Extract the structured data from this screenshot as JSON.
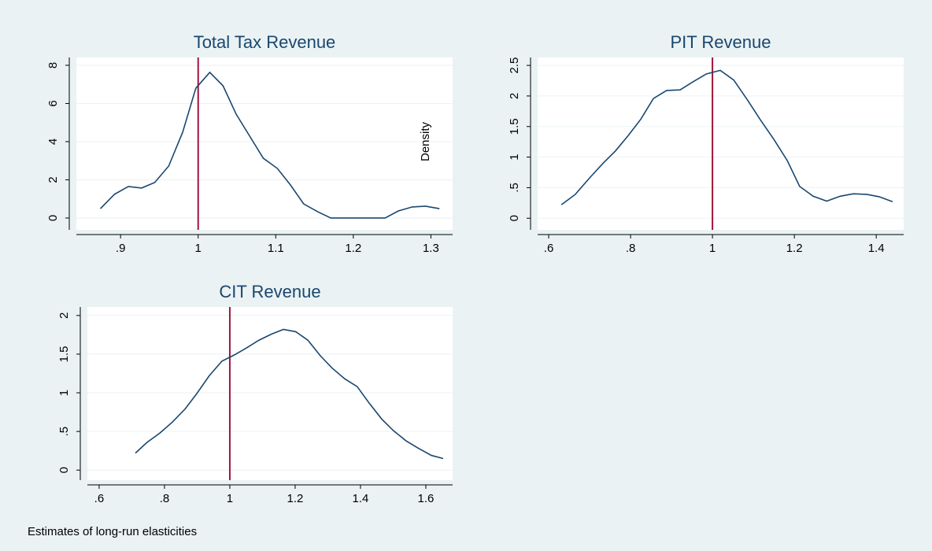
{
  "note": "Estimates of long-run elasticities",
  "chart_data": [
    {
      "type": "line",
      "title": "Total Tax Revenue",
      "ylabel": "Density",
      "x": [
        0.874,
        0.892,
        0.91,
        0.927,
        0.944,
        0.962,
        0.98,
        0.997,
        1.015,
        1.032,
        1.049,
        1.067,
        1.084,
        1.102,
        1.119,
        1.136,
        1.154,
        1.171,
        1.188,
        1.206,
        1.223,
        1.241,
        1.258,
        1.276,
        1.293,
        1.311
      ],
      "values": [
        0.49,
        1.24,
        1.65,
        1.57,
        1.86,
        2.72,
        4.49,
        6.8,
        7.63,
        6.93,
        5.44,
        4.25,
        3.13,
        2.6,
        1.73,
        0.74,
        0.33,
        0,
        0,
        0,
        0,
        0,
        0.37,
        0.58,
        0.62,
        0.49
      ],
      "color": "#1a476f",
      "refline": 1,
      "refline_color": "#a0143c",
      "xlim": [
        0.843,
        1.328
      ],
      "ylim": [
        -0.62,
        8.41
      ],
      "xticks": [
        {
          "value": 0.9,
          "label": ".9"
        },
        1,
        1.1,
        1.2,
        1.3
      ],
      "yticks": [
        0,
        2,
        4,
        6,
        8
      ],
      "grid": true
    },
    {
      "type": "line",
      "title": "PIT Revenue",
      "x": [
        0.631,
        0.665,
        0.7,
        0.733,
        0.763,
        0.794,
        0.825,
        0.856,
        0.888,
        0.921,
        0.952,
        0.985,
        1.019,
        1.052,
        1.087,
        1.117,
        1.15,
        1.183,
        1.213,
        1.246,
        1.279,
        1.312,
        1.344,
        1.377,
        1.408,
        1.44
      ],
      "values": [
        0.22,
        0.39,
        0.66,
        0.9,
        1.1,
        1.35,
        1.62,
        1.96,
        2.09,
        2.1,
        2.23,
        2.36,
        2.42,
        2.26,
        1.92,
        1.61,
        1.29,
        0.94,
        0.52,
        0.36,
        0.28,
        0.36,
        0.4,
        0.39,
        0.35,
        0.27
      ],
      "color": "#1a476f",
      "refline": 1,
      "refline_color": "#a0143c",
      "xlim": [
        0.573,
        1.467
      ],
      "ylim": [
        -0.19,
        2.63
      ],
      "xticks": [
        {
          "value": 0.6,
          "label": ".6"
        },
        {
          "value": 0.8,
          "label": ".8"
        },
        1,
        1.2,
        1.4
      ],
      "yticks": [
        0,
        {
          "value": 0.5,
          "label": ".5"
        },
        1,
        1.5,
        2,
        2.5
      ],
      "grid": true
    },
    {
      "type": "line",
      "title": "CIT Revenue",
      "x": [
        0.711,
        0.747,
        0.786,
        0.824,
        0.863,
        0.899,
        0.937,
        0.976,
        1.014,
        1.051,
        1.089,
        1.128,
        1.164,
        1.202,
        1.239,
        1.277,
        1.313,
        1.352,
        1.39,
        1.426,
        1.465,
        1.501,
        1.539,
        1.578,
        1.617,
        1.653
      ],
      "values": [
        0.22,
        0.36,
        0.48,
        0.62,
        0.79,
        0.99,
        1.22,
        1.41,
        1.49,
        1.58,
        1.68,
        1.76,
        1.82,
        1.79,
        1.68,
        1.48,
        1.32,
        1.18,
        1.08,
        0.87,
        0.66,
        0.51,
        0.38,
        0.28,
        0.19,
        0.15
      ],
      "color": "#1a476f",
      "refline": 1,
      "refline_color": "#a0143c",
      "xlim": [
        0.564,
        1.682
      ],
      "ylim": [
        -0.13,
        2.11
      ],
      "xticks": [
        {
          "value": 0.6,
          "label": ".6"
        },
        {
          "value": 0.8,
          "label": ".8"
        },
        1,
        1.2,
        1.4,
        1.6
      ],
      "yticks": [
        0,
        {
          "value": 0.5,
          "label": ".5"
        },
        1,
        1.5,
        2
      ],
      "grid": true
    }
  ]
}
